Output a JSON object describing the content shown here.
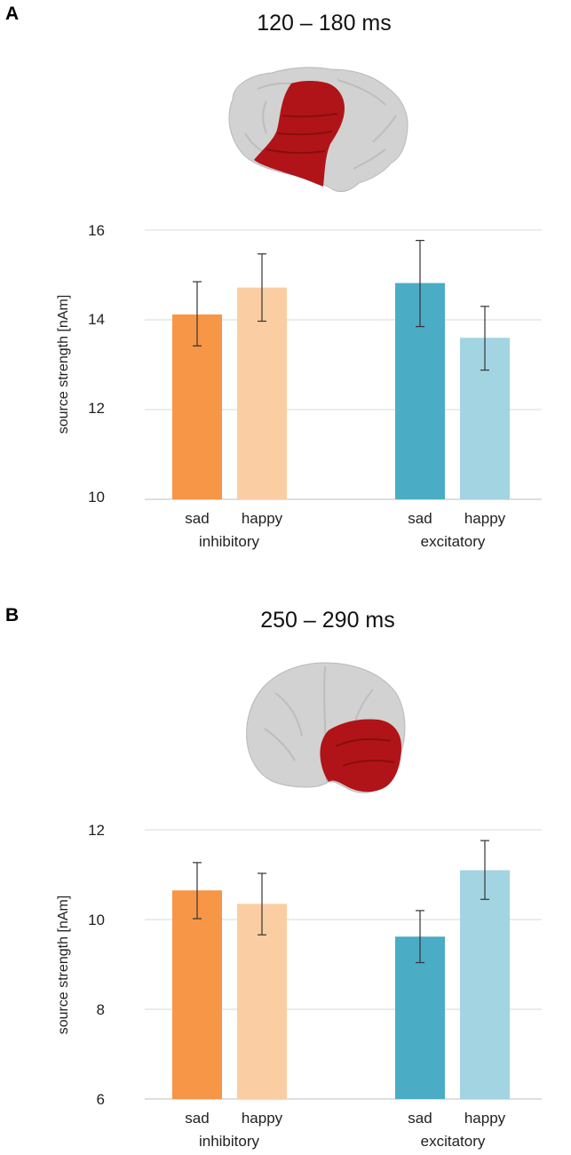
{
  "colors": {
    "inhibitory_sad": "#f79646",
    "inhibitory_happy": "#fbcda3",
    "excitatory_sad": "#4bacc6",
    "excitatory_happy": "#a3d4e1",
    "brain_region": "#b01418",
    "brain_gray": "#d2d2d2"
  },
  "chart_data": [
    {
      "panel": "A",
      "type": "bar",
      "title": "120 – 180 ms",
      "ylabel": "source strength [nAm]",
      "ylim": [
        10,
        16
      ],
      "yticks": [
        "10",
        "12",
        "14",
        "16"
      ],
      "groups": [
        {
          "name": "inhibitory",
          "bars": [
            {
              "label": "sad",
              "value": 14.12,
              "err_low": 13.42,
              "err_high": 14.85,
              "color_key": "inhibitory_sad"
            },
            {
              "label": "happy",
              "value": 14.72,
              "err_low": 13.97,
              "err_high": 15.47,
              "color_key": "inhibitory_happy"
            }
          ]
        },
        {
          "name": "excitatory",
          "bars": [
            {
              "label": "sad",
              "value": 14.82,
              "err_low": 13.85,
              "err_high": 15.77,
              "color_key": "excitatory_sad"
            },
            {
              "label": "happy",
              "value": 13.6,
              "err_low": 12.88,
              "err_high": 14.3,
              "color_key": "excitatory_happy"
            }
          ]
        }
      ]
    },
    {
      "panel": "B",
      "type": "bar",
      "title": "250 – 290 ms",
      "ylabel": "source strength [nAm]",
      "ylim": [
        6,
        12
      ],
      "yticks": [
        "6",
        "8",
        "10",
        "12"
      ],
      "groups": [
        {
          "name": "inhibitory",
          "bars": [
            {
              "label": "sad",
              "value": 10.65,
              "err_low": 10.02,
              "err_high": 11.27,
              "color_key": "inhibitory_sad"
            },
            {
              "label": "happy",
              "value": 10.35,
              "err_low": 9.66,
              "err_high": 11.03,
              "color_key": "inhibitory_happy"
            }
          ]
        },
        {
          "name": "excitatory",
          "bars": [
            {
              "label": "sad",
              "value": 9.62,
              "err_low": 9.04,
              "err_high": 10.2,
              "color_key": "excitatory_sad"
            },
            {
              "label": "happy",
              "value": 11.1,
              "err_low": 10.45,
              "err_high": 11.76,
              "color_key": "excitatory_happy"
            }
          ]
        }
      ]
    }
  ]
}
